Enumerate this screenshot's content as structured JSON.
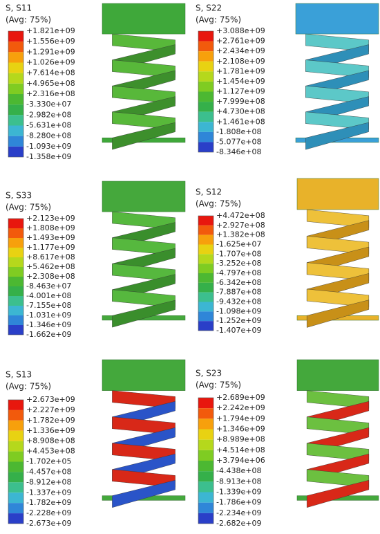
{
  "panels": [
    {
      "title": "S, S11",
      "avg": "(Avg: 75%)",
      "labels": [
        "+1.821e+09",
        "+1.556e+09",
        "+1.291e+09",
        "+1.026e+09",
        "+7.614e+08",
        "+4.965e+08",
        "+2.316e+08",
        "-3.330e+07",
        "-2.982e+08",
        "-5.631e+08",
        "-8.280e+08",
        "-1.093e+09",
        "-1.358e+09"
      ]
    },
    {
      "title": "S, S22",
      "avg": "(Avg: 75%)",
      "labels": [
        "+3.088e+09",
        "+2.761e+09",
        "+2.434e+09",
        "+2.108e+09",
        "+1.781e+09",
        "+1.454e+09",
        "+1.127e+09",
        "+7.999e+08",
        "+4.730e+08",
        "+1.461e+08",
        "-1.808e+08",
        "-5.077e+08",
        "-8.346e+08"
      ]
    },
    {
      "title": "S, S33",
      "avg": "(Avg: 75%)",
      "labels": [
        "+2.123e+09",
        "+1.808e+09",
        "+1.493e+09",
        "+1.177e+09",
        "+8.617e+08",
        "+5.462e+08",
        "+2.308e+08",
        "-8.463e+07",
        "-4.001e+08",
        "-7.155e+08",
        "-1.031e+09",
        "-1.346e+09",
        "-1.662e+09"
      ]
    },
    {
      "title": "S, S12",
      "avg": "(Avg: 75%)",
      "labels": [
        "+4.472e+08",
        "+2.927e+08",
        "+1.382e+08",
        "-1.625e+07",
        "-1.707e+08",
        "-3.252e+08",
        "-4.797e+08",
        "-6.342e+08",
        "-7.887e+08",
        "-9.432e+08",
        "-1.098e+09",
        "-1.252e+09",
        "-1.407e+09"
      ]
    },
    {
      "title": "S, S13",
      "avg": "(Avg: 75%)",
      "labels": [
        "+2.673e+09",
        "+2.227e+09",
        "+1.782e+09",
        "+1.336e+09",
        "+8.908e+08",
        "+4.453e+08",
        "-1.702e+05",
        "-4.457e+08",
        "-8.912e+08",
        "-1.337e+09",
        "-1.782e+09",
        "-2.228e+09",
        "-2.673e+09"
      ]
    },
    {
      "title": "S, S23",
      "avg": "(Avg: 75%)",
      "labels": [
        "+2.689e+09",
        "+2.242e+09",
        "+1.794e+09",
        "+1.346e+09",
        "+8.989e+08",
        "+4.514e+08",
        "+3.794e+06",
        "-4.438e+08",
        "-8.913e+08",
        "-1.339e+09",
        "-1.786e+09",
        "-2.234e+09",
        "-2.682e+09"
      ]
    }
  ]
}
